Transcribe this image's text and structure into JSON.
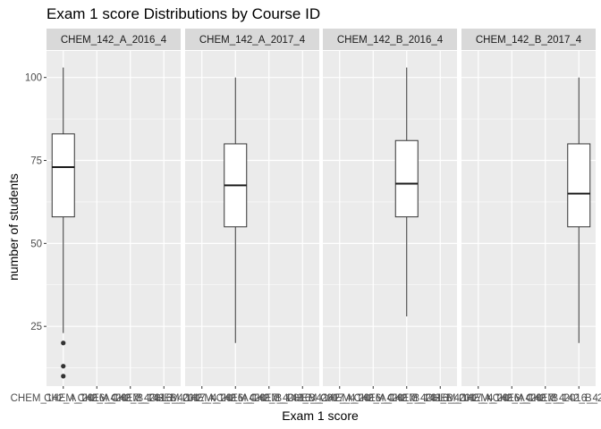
{
  "chart_data": {
    "type": "box",
    "title": "Exam 1 score Distributions by Course ID",
    "xlabel": "Exam 1 score",
    "ylabel": "number of students",
    "ylim": [
      7,
      108
    ],
    "yticks": [
      25,
      50,
      75,
      100
    ],
    "categories": [
      "CHEM_142_A_2016_4",
      "CHEM_142_A_2017_4",
      "CHEM_142_B_2016_4",
      "CHEM_142_B_2017_4"
    ],
    "facets": [
      {
        "name": "CHEM_142_A_2016_4",
        "min": 23,
        "q1": 58,
        "median": 73,
        "q3": 83,
        "max": 103,
        "outliers": [
          20,
          13,
          10
        ]
      },
      {
        "name": "CHEM_142_A_2017_4",
        "min": 20,
        "q1": 55,
        "median": 67.5,
        "q3": 80,
        "max": 100,
        "outliers": []
      },
      {
        "name": "CHEM_142_B_2016_4",
        "min": 28,
        "q1": 58,
        "median": 68,
        "q3": 81,
        "max": 103,
        "outliers": []
      },
      {
        "name": "CHEM_142_B_2017_4",
        "min": 20,
        "q1": 55,
        "median": 65,
        "q3": 80,
        "max": 100,
        "outliers": []
      }
    ],
    "grid": true,
    "colors": {
      "panel": "#ebebeb",
      "strip": "#d9d9d9",
      "grid": "#ffffff",
      "box_line": "#333333",
      "box_fill": "#ffffff"
    }
  }
}
